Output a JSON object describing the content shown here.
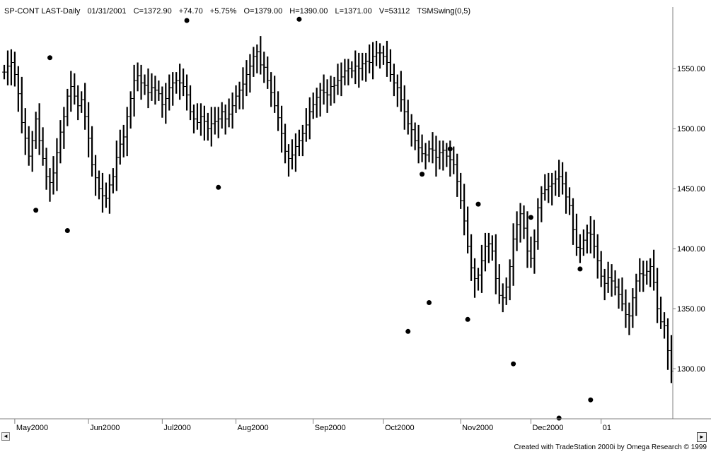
{
  "header": {
    "symbol": "SP-CONT LAST-Daily",
    "date": "01/31/2001",
    "close": "C=1372.90",
    "change": "+74.70",
    "pct": "+5.75%",
    "open": "O=1379.00",
    "high": "H=1390.00",
    "low": "L=1371.00",
    "volume": "V=53112",
    "indicator": "TSMSwing(0,5)"
  },
  "footer": {
    "credit": "Created with TradeStation 2000i by Omega Research © 1999"
  },
  "scrollbar": {
    "left_arrow": "◄",
    "right_arrow": "►"
  },
  "colors": {
    "bars": "#000000",
    "background": "#ffffff",
    "axis": "#808080"
  },
  "chart_data": {
    "type": "ohlc",
    "title": "SP-CONT LAST-Daily",
    "ylim": [
      1255,
      1610
    ],
    "y_ticks": [
      {
        "label": "1550.00",
        "value": 1550
      },
      {
        "label": "1500.00",
        "value": 1500
      },
      {
        "label": "1450.00",
        "value": 1450
      },
      {
        "label": "1400.00",
        "value": 1400
      },
      {
        "label": "1350.00",
        "value": 1350
      },
      {
        "label": "1300.00",
        "value": 1300
      }
    ],
    "x_ticks": [
      {
        "label": "May2000",
        "index": 3
      },
      {
        "label": "Jun2000",
        "index": 24
      },
      {
        "label": "Jul2000",
        "index": 45
      },
      {
        "label": "Aug2000",
        "index": 66
      },
      {
        "label": "Sep2000",
        "index": 88
      },
      {
        "label": "Oct2000",
        "index": 108
      },
      {
        "label": "Nov2000",
        "index": 130
      },
      {
        "label": "Dec2000",
        "index": 150
      },
      {
        "label": "01",
        "index": 170
      }
    ],
    "x_count": 190,
    "series": [
      {
        "values": [
          1547,
          1552,
          1555,
          1545,
          1529,
          1505,
          1492,
          1477,
          1490,
          1508,
          1490,
          1475,
          1460,
          1455,
          1463,
          1480,
          1497,
          1510,
          1527,
          1535,
          1527,
          1519,
          1524,
          1510,
          1492,
          1470,
          1459,
          1450,
          1444,
          1442,
          1453,
          1460,
          1476,
          1487,
          1493,
          1510,
          1525,
          1540,
          1544,
          1538,
          1536,
          1530,
          1534,
          1532,
          1529,
          1520,
          1525,
          1534,
          1538,
          1540,
          1538,
          1535,
          1528,
          1514,
          1508,
          1505,
          1510,
          1506,
          1500,
          1504,
          1506,
          1508,
          1514,
          1508,
          1512,
          1519,
          1527,
          1532,
          1537,
          1545,
          1552,
          1560,
          1564,
          1553,
          1551,
          1540,
          1530,
          1519,
          1509,
          1496,
          1481,
          1475,
          1478,
          1485,
          1490,
          1496,
          1503,
          1514,
          1520,
          1526,
          1532,
          1530,
          1528,
          1535,
          1536,
          1540,
          1543,
          1548,
          1550,
          1548,
          1552,
          1550,
          1554,
          1556,
          1555,
          1560,
          1563,
          1563,
          1560,
          1555,
          1545,
          1538,
          1534,
          1524,
          1514,
          1504,
          1499,
          1490,
          1484,
          1479,
          1478,
          1483,
          1482,
          1476,
          1480,
          1482,
          1477,
          1474,
          1470,
          1456,
          1440,
          1423,
          1402,
          1384,
          1375,
          1378,
          1390,
          1402,
          1404,
          1398,
          1375,
          1361,
          1359,
          1368,
          1385,
          1408,
          1420,
          1429,
          1417,
          1398,
          1392,
          1406,
          1434,
          1446,
          1449,
          1452,
          1454,
          1458,
          1460,
          1454,
          1443,
          1436,
          1416,
          1401,
          1400,
          1407,
          1413,
          1412,
          1402,
          1390,
          1377,
          1371,
          1376,
          1373,
          1368,
          1362,
          1354,
          1345,
          1344,
          1359,
          1373,
          1379,
          1378,
          1381,
          1385,
          1372,
          1350,
          1339,
          1336,
          1315,
          1298
        ],
        "name": ""
      }
    ],
    "swing_highs": [
      {
        "index": 13,
        "value": 1559
      },
      {
        "index": 52,
        "value": 1590
      },
      {
        "index": 84,
        "value": 1591
      },
      {
        "index": 119,
        "value": 1462
      },
      {
        "index": 127,
        "value": 1483
      },
      {
        "index": 135,
        "value": 1437
      },
      {
        "index": 150,
        "value": 1426
      },
      {
        "index": 164,
        "value": 1383
      }
    ],
    "swing_lows": [
      {
        "index": 9,
        "value": 1432
      },
      {
        "index": 18,
        "value": 1415
      },
      {
        "index": 61,
        "value": 1451
      },
      {
        "index": 115,
        "value": 1331
      },
      {
        "index": 121,
        "value": 1355
      },
      {
        "index": 132,
        "value": 1341
      },
      {
        "index": 145,
        "value": 1304
      },
      {
        "index": 158,
        "value": 1255
      },
      {
        "index": 167,
        "value": 1274
      }
    ]
  }
}
